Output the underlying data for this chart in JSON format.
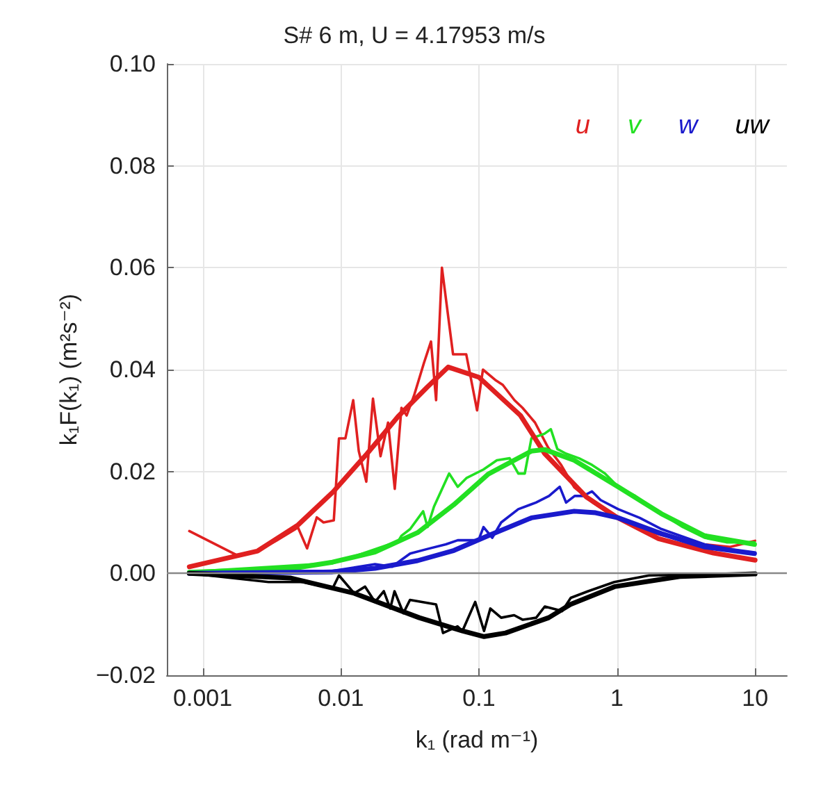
{
  "chart_data": {
    "type": "line",
    "title": "S# 6 m, U = 4.17953 m/s",
    "xlabel": "k₁ (rad m⁻¹)",
    "ylabel": "k₁F(k₁) (m²s⁻²)",
    "log": "x",
    "xlim": [
      0.00055,
      17
    ],
    "xticks": [
      0.001,
      0.01,
      0.1,
      1,
      10
    ],
    "ylim": [
      -0.02,
      0.1
    ],
    "yticks": [
      {
        "value": -0.02,
        "label": "−0.02"
      },
      {
        "value": 0,
        "label": "0.00"
      },
      {
        "value": 0.02,
        "label": "0.02"
      },
      {
        "value": 0.04,
        "label": "0.04"
      },
      {
        "value": 0.06,
        "label": "0.06"
      },
      {
        "value": 0.08,
        "label": "0.08"
      },
      {
        "value": 0.1,
        "label": "0.10"
      }
    ],
    "grid": true,
    "legend": "top right",
    "marker": "none",
    "line_style": "solid",
    "ref_lines": [
      {
        "axis": "y",
        "value": 0,
        "color": "#888888"
      }
    ],
    "series": [
      {
        "color": "#e02020",
        "x": [
          0.0008,
          0.00176,
          0.0025,
          0.0034,
          0.0049,
          0.0057,
          0.0067,
          0.0075,
          0.0089,
          0.0097,
          0.0108,
          0.0123,
          0.0135,
          0.0153,
          0.0171,
          0.0194,
          0.022,
          0.0246,
          0.0275,
          0.03,
          0.034,
          0.04,
          0.045,
          0.049,
          0.054,
          0.065,
          0.081,
          0.097,
          0.107,
          0.131,
          0.149,
          0.181,
          0.207,
          0.255,
          0.317,
          0.394,
          0.49,
          0.66,
          0.88,
          1.36,
          2.1,
          4.3,
          6.6,
          10
        ],
        "values": [
          0.0083,
          0.0036,
          0.0044,
          0.0064,
          0.009,
          0.0049,
          0.011,
          0.01,
          0.0104,
          0.0265,
          0.0265,
          0.034,
          0.024,
          0.018,
          0.0343,
          0.023,
          0.0296,
          0.0166,
          0.0325,
          0.031,
          0.035,
          0.0413,
          0.0455,
          0.034,
          0.06,
          0.043,
          0.043,
          0.032,
          0.04,
          0.038,
          0.037,
          0.034,
          0.0325,
          0.0296,
          0.0247,
          0.0213,
          0.0169,
          0.014,
          0.0117,
          0.009,
          0.0075,
          0.0057,
          0.0052,
          0.0064
        ]
      },
      {
        "color": "#22e022",
        "x": [
          0.0008,
          0.0087,
          0.013,
          0.026,
          0.0275,
          0.0318,
          0.0395,
          0.0425,
          0.0473,
          0.0609,
          0.0703,
          0.0812,
          0.108,
          0.135,
          0.167,
          0.193,
          0.215,
          0.24,
          0.298,
          0.332,
          0.37,
          0.428,
          0.531,
          0.659,
          0.818,
          1.02,
          1.36,
          2.1,
          3.0,
          4.3,
          6.2,
          9.9
        ],
        "values": [
          0.0003,
          0.002,
          0.0035,
          0.0063,
          0.0074,
          0.0087,
          0.0122,
          0.0091,
          0.0131,
          0.0196,
          0.017,
          0.0187,
          0.0204,
          0.0222,
          0.0226,
          0.0196,
          0.0196,
          0.0265,
          0.0274,
          0.0283,
          0.0244,
          0.0235,
          0.0226,
          0.0213,
          0.0196,
          0.017,
          0.0152,
          0.0117,
          0.0091,
          0.007,
          0.0061,
          0.0061
        ]
      },
      {
        "color": "#1a1acc",
        "x": [
          0.0008,
          0.0087,
          0.0177,
          0.0236,
          0.0273,
          0.0318,
          0.0425,
          0.0577,
          0.0703,
          0.0994,
          0.108,
          0.125,
          0.145,
          0.193,
          0.259,
          0.322,
          0.385,
          0.428,
          0.494,
          0.571,
          0.659,
          0.761,
          1.02,
          1.46,
          2.1,
          4.3,
          9.9
        ],
        "values": [
          0,
          0.0005,
          0.0018,
          0.0013,
          0.0026,
          0.0039,
          0.0048,
          0.0057,
          0.0065,
          0.0065,
          0.0091,
          0.007,
          0.01,
          0.0126,
          0.0139,
          0.0152,
          0.017,
          0.0139,
          0.0152,
          0.0152,
          0.0161,
          0.0144,
          0.0126,
          0.0109,
          0.0087,
          0.0057,
          0.0039
        ]
      },
      {
        "color": "#000000",
        "x": [
          0.0008,
          0.003,
          0.0053,
          0.0076,
          0.0087,
          0.0097,
          0.0125,
          0.015,
          0.0177,
          0.0205,
          0.0228,
          0.0245,
          0.0284,
          0.0317,
          0.049,
          0.055,
          0.07,
          0.076,
          0.094,
          0.109,
          0.121,
          0.145,
          0.18,
          0.208,
          0.26,
          0.3,
          0.401,
          0.463,
          0.618,
          0.958,
          1.71,
          2.85,
          10
        ],
        "values": [
          0,
          -0.0017,
          -0.0017,
          -0.0026,
          -0.003,
          -0.0004,
          -0.0039,
          -0.0026,
          -0.0056,
          -0.0035,
          -0.0069,
          -0.0035,
          -0.0078,
          -0.0052,
          -0.0061,
          -0.0117,
          -0.0104,
          -0.0113,
          -0.0056,
          -0.0113,
          -0.0069,
          -0.0087,
          -0.0082,
          -0.0091,
          -0.0087,
          -0.0065,
          -0.0074,
          -0.0048,
          -0.0035,
          -0.0017,
          -0.0004,
          -0.0003,
          0
        ]
      },
      {
        "name": "u",
        "color": "#e02020",
        "x": [
          0.0008,
          0.0025,
          0.0049,
          0.0088,
          0.0155,
          0.026,
          0.042,
          0.06,
          0.1,
          0.2,
          0.3,
          0.6,
          1,
          2,
          5,
          10
        ],
        "values": [
          0.0013,
          0.0044,
          0.0095,
          0.016,
          0.0235,
          0.0308,
          0.0365,
          0.0405,
          0.0385,
          0.031,
          0.0235,
          0.015,
          0.011,
          0.0068,
          0.004,
          0.0026
        ]
      },
      {
        "name": "v",
        "color": "#22e022",
        "x": [
          0.0008,
          0.0043,
          0.0087,
          0.0177,
          0.036,
          0.066,
          0.117,
          0.24,
          0.3,
          0.49,
          1.02,
          2.1,
          4.3,
          9.9
        ],
        "values": [
          0.0002,
          0.0009,
          0.0022,
          0.0042,
          0.008,
          0.0135,
          0.0195,
          0.024,
          0.0243,
          0.0222,
          0.017,
          0.0117,
          0.0074,
          0.0057
        ]
      },
      {
        "name": "w",
        "color": "#1a1acc",
        "x": [
          0.0008,
          0.0087,
          0.0177,
          0.036,
          0.066,
          0.117,
          0.24,
          0.49,
          0.7,
          1.02,
          2.1,
          4.3,
          9.9
        ],
        "values": [
          0,
          0.0003,
          0.001,
          0.0025,
          0.0045,
          0.0074,
          0.0109,
          0.0122,
          0.0119,
          0.0109,
          0.0078,
          0.0052,
          0.0039
        ]
      },
      {
        "name": "uw",
        "color": "#000000",
        "x": [
          0.0008,
          0.0043,
          0.0125,
          0.037,
          0.076,
          0.109,
          0.156,
          0.32,
          0.46,
          0.96,
          2.85,
          10
        ],
        "values": [
          0,
          -0.0009,
          -0.0039,
          -0.0087,
          -0.0113,
          -0.0124,
          -0.0117,
          -0.0087,
          -0.0061,
          -0.0026,
          -0.0006,
          -0.0001
        ]
      }
    ]
  }
}
